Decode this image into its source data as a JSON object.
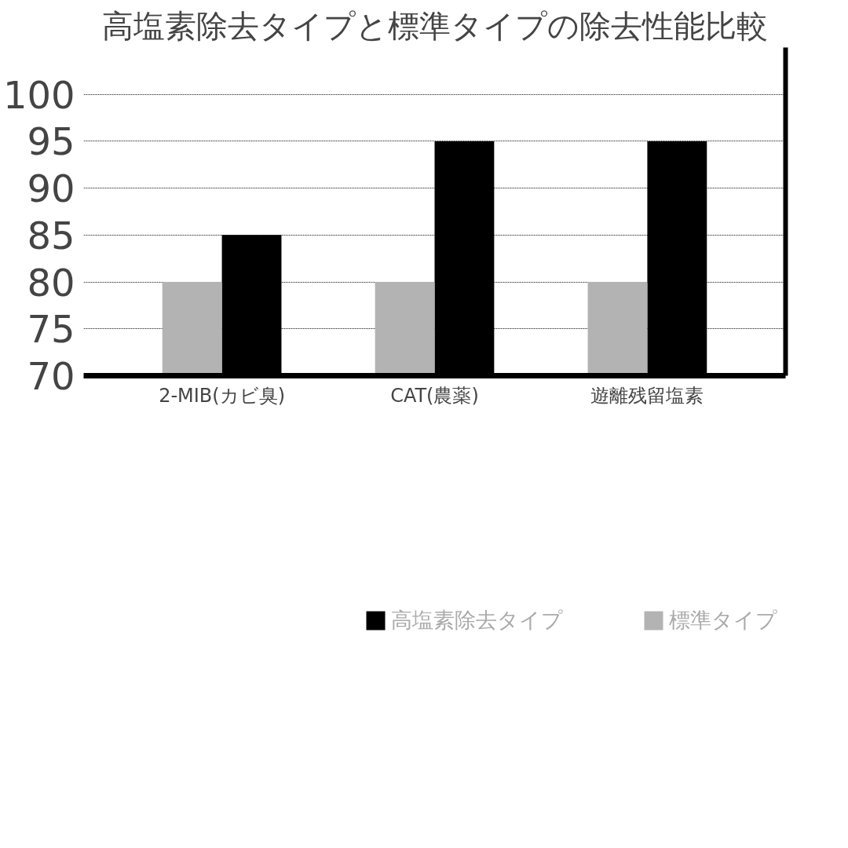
{
  "chart_data": {
    "type": "bar",
    "title": "高塩素除去タイプと標準タイプの除去性能比較",
    "categories": [
      "2-MIB(カビ臭)",
      "CAT(農薬)",
      "遊離残留塩素"
    ],
    "series": [
      {
        "name": "高塩素除去タイプ",
        "color": "#000000",
        "values": [
          85,
          95,
          95
        ]
      },
      {
        "name": "標準タイプ",
        "color": "#b3b3b3",
        "values": [
          80,
          80,
          80
        ]
      }
    ],
    "ylim": [
      70,
      105
    ],
    "yticks": [
      70,
      75,
      80,
      85,
      90,
      95,
      100
    ],
    "grid": "y",
    "legend": "bottom"
  }
}
